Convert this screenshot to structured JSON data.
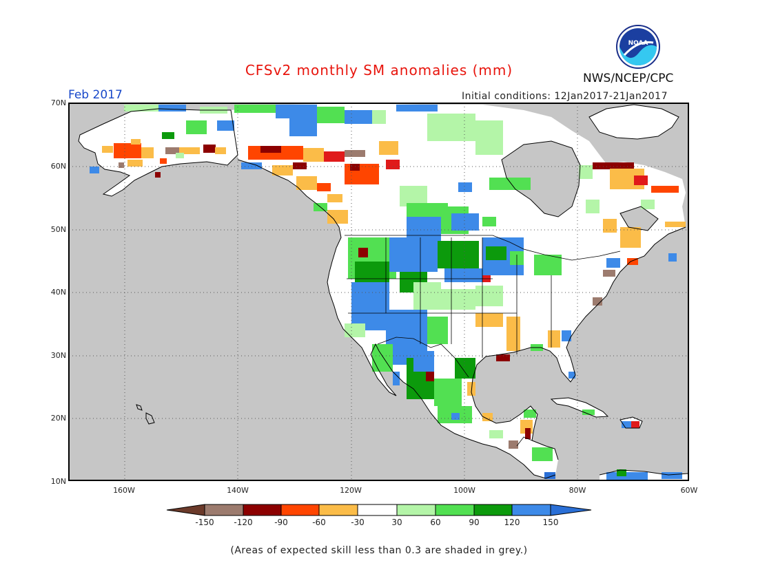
{
  "title": "CFSv2 monthly SM anomalies (mm)",
  "agency_label": "NWS/NCEP/CPC",
  "logo_text": "NOAA",
  "period": "Feb 2017",
  "initial_conditions": "Initial conditions: 12Jan2017-21Jan2017",
  "footnote": "(Areas of expected skill less than 0.3 are shaded in grey.)",
  "lat_labels": [
    "70N",
    "60N",
    "50N",
    "40N",
    "30N",
    "20N",
    "10N"
  ],
  "lon_labels": [
    "160W",
    "140W",
    "120W",
    "100W",
    "80W",
    "60W"
  ],
  "colorbar": {
    "tick_labels": [
      "-150",
      "-120",
      "-90",
      "-60",
      "-30",
      "30",
      "60",
      "90",
      "120",
      "150"
    ],
    "colors": [
      "#6b3a2a",
      "#9c7b6e",
      "#8c0000",
      "#e01a1a",
      "#ff4500",
      "#fbbc48",
      "#ffffff",
      "#b4f5a8",
      "#52e052",
      "#0c9a0c",
      "#3d8ae8",
      "#2a6fd6"
    ]
  },
  "colors": {
    "land_skill_grey": "#c8c8c8",
    "title_red": "#e8140c",
    "period_blue": "#1747c9"
  }
}
